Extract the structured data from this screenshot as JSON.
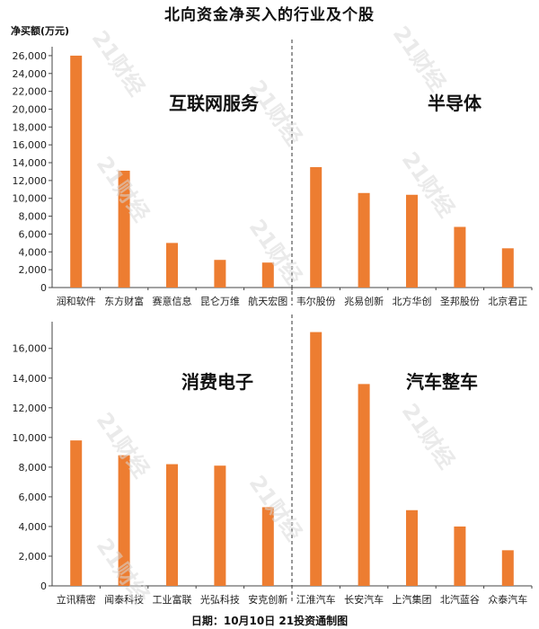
{
  "title": "北向资金净买入的行业及个股",
  "footer": "日期：10月10日 21投资通制图",
  "watermark": "21财经",
  "colors": {
    "bar": "#ed7d31",
    "axis": "#444444",
    "divider": "#333333"
  },
  "chart_data": [
    {
      "type": "bar",
      "ylabel": "净买额(万元)",
      "ylim": [
        0,
        27000
      ],
      "yticks": [
        0,
        2000,
        4000,
        6000,
        8000,
        10000,
        12000,
        14000,
        16000,
        18000,
        20000,
        22000,
        24000,
        26000
      ],
      "yticklabels": [
        "0",
        "2,000",
        "4,000",
        "6,000",
        "8,000",
        "10,000",
        "12,000",
        "14,000",
        "16,000",
        "18,000",
        "20,000",
        "22,000",
        "24,000",
        "26,000"
      ],
      "groups": [
        {
          "name": "互联网服务",
          "categories": [
            "润和软件",
            "东方财富",
            "赛意信息",
            "昆仑万维",
            "航天宏图"
          ],
          "values": [
            26000,
            13100,
            5000,
            3100,
            2800
          ]
        },
        {
          "name": "半导体",
          "categories": [
            "韦尔股份",
            "兆易创新",
            "北方华创",
            "圣邦股份",
            "北京君正"
          ],
          "values": [
            13500,
            10600,
            10400,
            6800,
            4400
          ]
        }
      ]
    },
    {
      "type": "bar",
      "ylabel": "",
      "ylim": [
        0,
        17800
      ],
      "yticks": [
        0,
        2000,
        4000,
        6000,
        8000,
        10000,
        12000,
        14000,
        16000
      ],
      "yticklabels": [
        "0",
        "2,000",
        "4,000",
        "6,000",
        "8,000",
        "10,000",
        "12,000",
        "14,000",
        "16,000"
      ],
      "groups": [
        {
          "name": "消费电子",
          "categories": [
            "立讯精密",
            "闻泰科技",
            "工业富联",
            "光弘科技",
            "安克创新"
          ],
          "values": [
            9800,
            8800,
            8200,
            8100,
            5300
          ]
        },
        {
          "name": "汽车整车",
          "categories": [
            "江淮汽车",
            "长安汽车",
            "上汽集团",
            "北汽蓝谷",
            "众泰汽车"
          ],
          "values": [
            17100,
            13600,
            5100,
            4000,
            2400
          ]
        }
      ]
    }
  ]
}
